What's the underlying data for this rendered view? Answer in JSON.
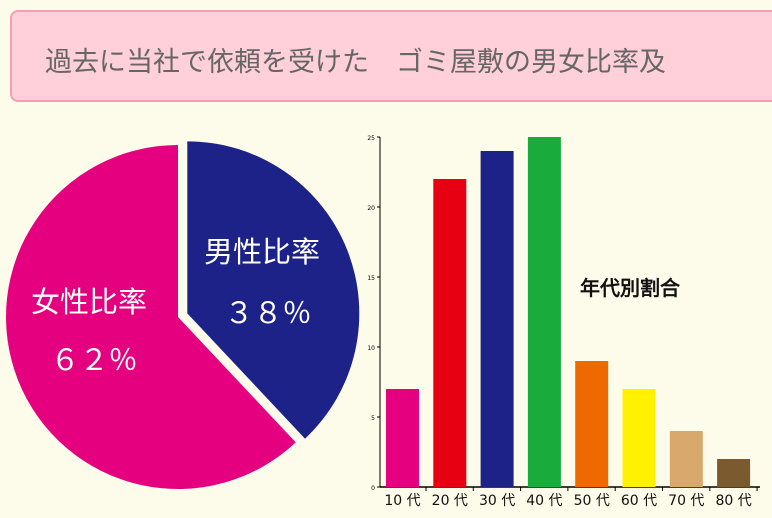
{
  "header": {
    "title": "過去に当社で依頼を受けた　ゴミ屋敷の男女比率及"
  },
  "chart_data": [
    {
      "type": "pie",
      "slices": [
        {
          "label": "男性比率",
          "value_label": "３８％",
          "value": 38,
          "color": "#1d2288"
        },
        {
          "label": "女性比率",
          "value_label": "６２％",
          "value": 62,
          "color": "#e4007f"
        }
      ]
    },
    {
      "type": "bar",
      "title": "年代別割合",
      "categories": [
        "10 代",
        "20 代",
        "30 代",
        "40 代",
        "50 代",
        "60 代",
        "70 代",
        "80 代"
      ],
      "values": [
        7,
        22,
        24,
        25,
        9,
        7,
        4,
        2
      ],
      "colors": [
        "#e4007f",
        "#e60012",
        "#1d2288",
        "#1aab3d",
        "#ee6a00",
        "#fff100",
        "#d9a86c",
        "#7a5a2e"
      ],
      "ylim": [
        0,
        25
      ],
      "yticks": [
        "0",
        "5",
        "10",
        "15",
        "20",
        "25"
      ]
    }
  ]
}
